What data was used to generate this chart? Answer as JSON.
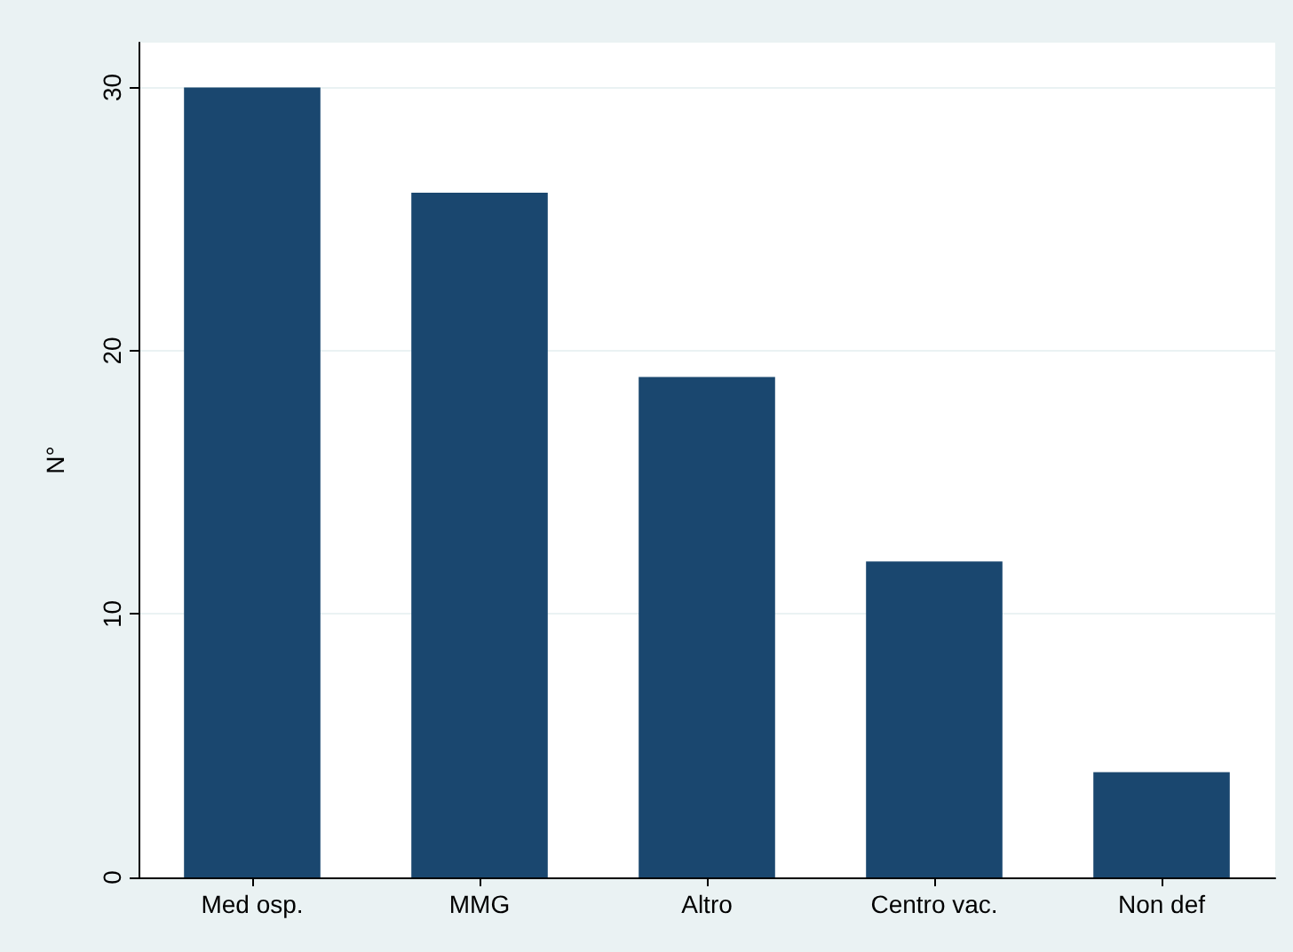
{
  "chart_data": {
    "type": "bar",
    "ylabel": "N°",
    "categories": [
      "Med osp.",
      "MMG",
      "Altro",
      "Centro vac.",
      "Non def"
    ],
    "values": [
      30,
      26,
      19,
      12,
      4
    ],
    "color": "#1a476f",
    "ylim": [
      0,
      31.7
    ],
    "yticks": [
      0,
      10,
      20,
      30
    ],
    "grid": "y"
  }
}
